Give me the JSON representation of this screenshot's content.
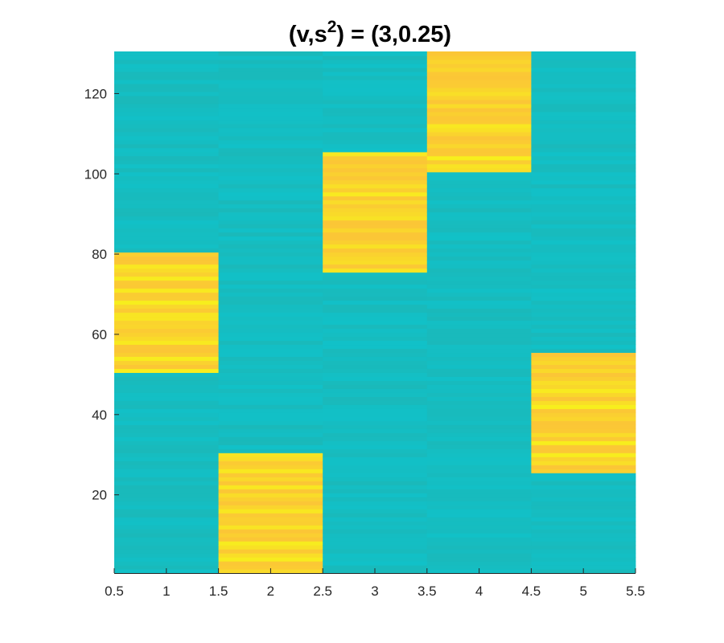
{
  "chart_data": {
    "type": "heatmap",
    "title": "(v,s",
    "title_superscript": "2",
    "title_suffix": ") = (3,0.25)",
    "xlabel": "",
    "ylabel": "",
    "xlim": [
      0.5,
      5.5
    ],
    "ylim": [
      0.5,
      130.5
    ],
    "x_ticks": [
      0.5,
      1,
      1.5,
      2,
      2.5,
      3,
      3.5,
      4,
      4.5,
      5,
      5.5
    ],
    "x_tick_labels": [
      "0.5",
      "1",
      "1.5",
      "2",
      "2.5",
      "3",
      "3.5",
      "4",
      "4.5",
      "5",
      "5.5"
    ],
    "y_ticks": [
      20,
      40,
      60,
      80,
      100,
      120
    ],
    "y_tick_labels": [
      "20",
      "40",
      "60",
      "80",
      "100",
      "120"
    ],
    "columns": [
      1,
      2,
      3,
      4,
      5
    ],
    "rows": 130,
    "colormap": "parula",
    "colors": {
      "low": "#1ab9ba",
      "mid": "#11c1c8",
      "high": "#fbc636",
      "peak": "#f7f01c",
      "axis": "#262626"
    },
    "high_blocks": [
      {
        "column": 1,
        "row_start": 51,
        "row_end": 80
      },
      {
        "column": 2,
        "row_start": 1,
        "row_end": 30
      },
      {
        "column": 3,
        "row_start": 76,
        "row_end": 105
      },
      {
        "column": 4,
        "row_start": 101,
        "row_end": 130
      },
      {
        "column": 5,
        "row_start": 26,
        "row_end": 55
      }
    ],
    "grid": false
  }
}
